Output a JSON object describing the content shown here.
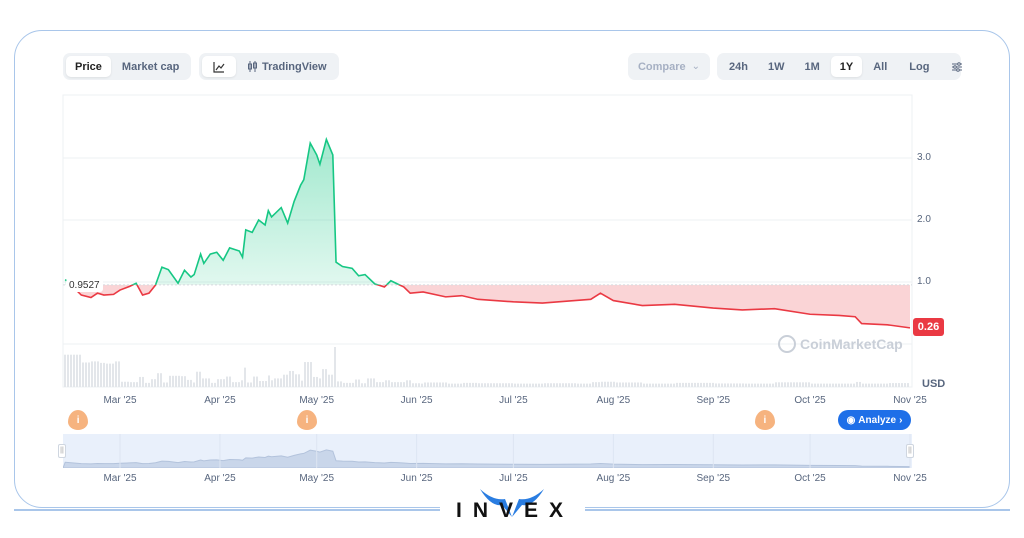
{
  "toolbar": {
    "view_tabs": [
      {
        "label": "Price",
        "active": true
      },
      {
        "label": "Market cap",
        "active": false
      }
    ],
    "chart_type": {
      "line_icon": "line-chart-icon",
      "tradingview_icon": "candlestick-icon",
      "tradingview_label": "TradingView"
    },
    "compare_label": "Compare",
    "ranges": [
      {
        "label": "24h"
      },
      {
        "label": "1W"
      },
      {
        "label": "1M"
      },
      {
        "label": "1Y",
        "active": true
      },
      {
        "label": "All"
      }
    ],
    "log_label": "Log",
    "settings_icon": "sliders-icon"
  },
  "chart_data": {
    "type": "area",
    "baseline": 0.9527,
    "baseline_label": "0.9527",
    "current_label": "0.26",
    "unit": "USD",
    "ylim": [
      0,
      3.6
    ],
    "yticks": [
      "1.0",
      "2.0",
      "3.0"
    ],
    "xticks": [
      "Mar '25",
      "Apr '25",
      "May '25",
      "Jun '25",
      "Jul '25",
      "Aug '25",
      "Sep '25",
      "Oct '25",
      "Nov '25"
    ],
    "colors": {
      "up": "#16c784",
      "down": "#ea3943",
      "up_fill": "#16c784",
      "down_fill": "#ea3943"
    },
    "grid": true,
    "series": [
      [
        "2025-02-12",
        1.04
      ],
      [
        "2025-02-17",
        0.79
      ],
      [
        "2025-02-20",
        0.75
      ],
      [
        "2025-02-22",
        0.82
      ],
      [
        "2025-02-24",
        0.79
      ],
      [
        "2025-02-27",
        0.8
      ],
      [
        "2025-03-01",
        0.87
      ],
      [
        "2025-03-04",
        0.93
      ],
      [
        "2025-03-06",
        0.98
      ],
      [
        "2025-03-08",
        0.79
      ],
      [
        "2025-03-10",
        0.82
      ],
      [
        "2025-03-12",
        0.95
      ],
      [
        "2025-03-14",
        1.24
      ],
      [
        "2025-03-16",
        1.2
      ],
      [
        "2025-03-19",
        0.98
      ],
      [
        "2025-03-21",
        1.19
      ],
      [
        "2025-03-23",
        1.08
      ],
      [
        "2025-03-24",
        1.12
      ],
      [
        "2025-03-26",
        1.45
      ],
      [
        "2025-03-27",
        1.3
      ],
      [
        "2025-03-29",
        1.45
      ],
      [
        "2025-03-31",
        1.48
      ],
      [
        "2025-04-02",
        1.35
      ],
      [
        "2025-04-04",
        1.55
      ],
      [
        "2025-04-07",
        1.5
      ],
      [
        "2025-04-08",
        1.4
      ],
      [
        "2025-04-09",
        1.84
      ],
      [
        "2025-04-11",
        1.8
      ],
      [
        "2025-04-13",
        2.0
      ],
      [
        "2025-04-15",
        1.92
      ],
      [
        "2025-04-16",
        2.15
      ],
      [
        "2025-04-17",
        2.05
      ],
      [
        "2025-04-20",
        2.2
      ],
      [
        "2025-04-22",
        1.95
      ],
      [
        "2025-04-24",
        2.3
      ],
      [
        "2025-04-26",
        2.56
      ],
      [
        "2025-04-27",
        2.65
      ],
      [
        "2025-04-29",
        3.24
      ],
      [
        "2025-05-01",
        3.05
      ],
      [
        "2025-05-02",
        2.9
      ],
      [
        "2025-05-04",
        3.3
      ],
      [
        "2025-05-06",
        3.05
      ],
      [
        "2025-05-07",
        1.32
      ],
      [
        "2025-05-09",
        1.25
      ],
      [
        "2025-05-12",
        1.22
      ],
      [
        "2025-05-14",
        1.1
      ],
      [
        "2025-05-16",
        1.12
      ],
      [
        "2025-05-19",
        0.97
      ],
      [
        "2025-05-22",
        0.92
      ],
      [
        "2025-05-24",
        1.02
      ],
      [
        "2025-05-26",
        0.97
      ],
      [
        "2025-05-28",
        0.92
      ],
      [
        "2025-05-30",
        0.82
      ],
      [
        "2025-06-03",
        0.84
      ],
      [
        "2025-06-10",
        0.76
      ],
      [
        "2025-06-15",
        0.78
      ],
      [
        "2025-06-20",
        0.72
      ],
      [
        "2025-07-01",
        0.68
      ],
      [
        "2025-07-10",
        0.66
      ],
      [
        "2025-07-20",
        0.7
      ],
      [
        "2025-07-25",
        0.72
      ],
      [
        "2025-07-28",
        0.82
      ],
      [
        "2025-08-01",
        0.7
      ],
      [
        "2025-08-10",
        0.62
      ],
      [
        "2025-08-20",
        0.64
      ],
      [
        "2025-09-01",
        0.58
      ],
      [
        "2025-09-10",
        0.55
      ],
      [
        "2025-09-20",
        0.57
      ],
      [
        "2025-10-01",
        0.48
      ],
      [
        "2025-10-10",
        0.46
      ],
      [
        "2025-10-15",
        0.44
      ],
      [
        "2025-10-17",
        0.33
      ],
      [
        "2025-10-25",
        0.31
      ],
      [
        "2025-11-01",
        0.26
      ]
    ],
    "events": [
      "2025-02-16",
      "2025-04-28",
      "2025-09-17"
    ],
    "event_icon": "info-icon"
  },
  "watermark": "CoinMarketCap",
  "analyze_label": "Analyze",
  "brand": "INVEX"
}
